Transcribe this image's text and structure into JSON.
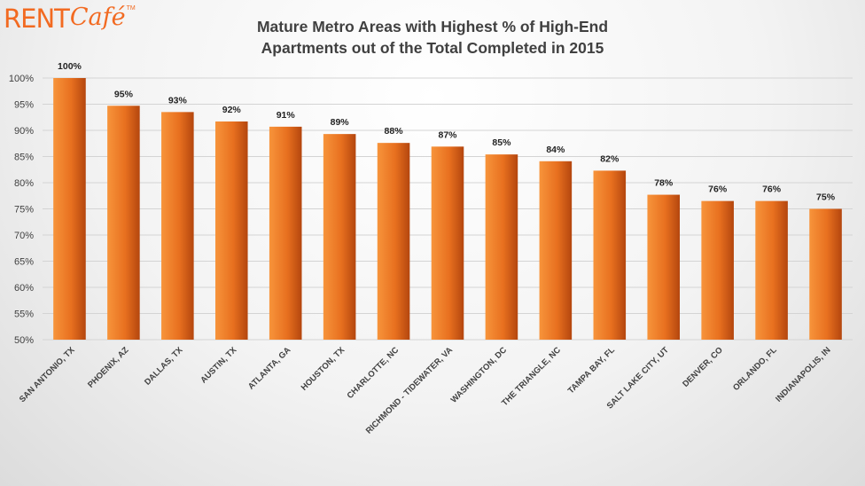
{
  "logo": {
    "brand_text": "RENT",
    "script_text": "Café",
    "tm": "TM"
  },
  "chart_data": {
    "type": "bar",
    "title_lines": [
      "Mature Metro Areas with Highest % of High-End",
      "Apartments out of the Total Completed in 2015"
    ],
    "categories": [
      "SAN ANTONIO, TX",
      "PHOENIX, AZ",
      "DALLAS, TX",
      "AUSTIN, TX",
      "ATLANTA, GA",
      "HOUSTON, TX",
      "CHARLOTTE, NC",
      "RICHMOND - TIDEWATER, VA",
      "WASHINGTON, DC",
      "THE TRIANGLE, NC",
      "TAMPA BAY, FL",
      "SALT LAKE CITY, UT",
      "DENVER, CO",
      "ORLANDO, FL",
      "INDIANAPOLIS, IN"
    ],
    "values": [
      100,
      94.7,
      93.5,
      91.7,
      90.7,
      89.3,
      87.6,
      86.9,
      85.4,
      84.1,
      82.3,
      77.7,
      76.5,
      76.5,
      75.0
    ],
    "data_labels": [
      "100%",
      "95%",
      "93%",
      "92%",
      "91%",
      "89%",
      "88%",
      "87%",
      "85%",
      "84%",
      "82%",
      "78%",
      "76%",
      "76%",
      "75%"
    ],
    "ylim": [
      50,
      100
    ],
    "yticks": [
      50,
      55,
      60,
      65,
      70,
      75,
      80,
      85,
      90,
      95,
      100
    ],
    "ytick_labels": [
      "50%",
      "55%",
      "60%",
      "65%",
      "70%",
      "75%",
      "80%",
      "85%",
      "90%",
      "95%",
      "100%"
    ],
    "grid": true,
    "legend": "none",
    "xlabel": "",
    "ylabel": "",
    "colors": {
      "bar_light": "#f7943b",
      "bar_dark": "#b4460e",
      "grid": "#d4d4d4",
      "axis_text": "#404040",
      "brand": "#f26a21"
    }
  }
}
